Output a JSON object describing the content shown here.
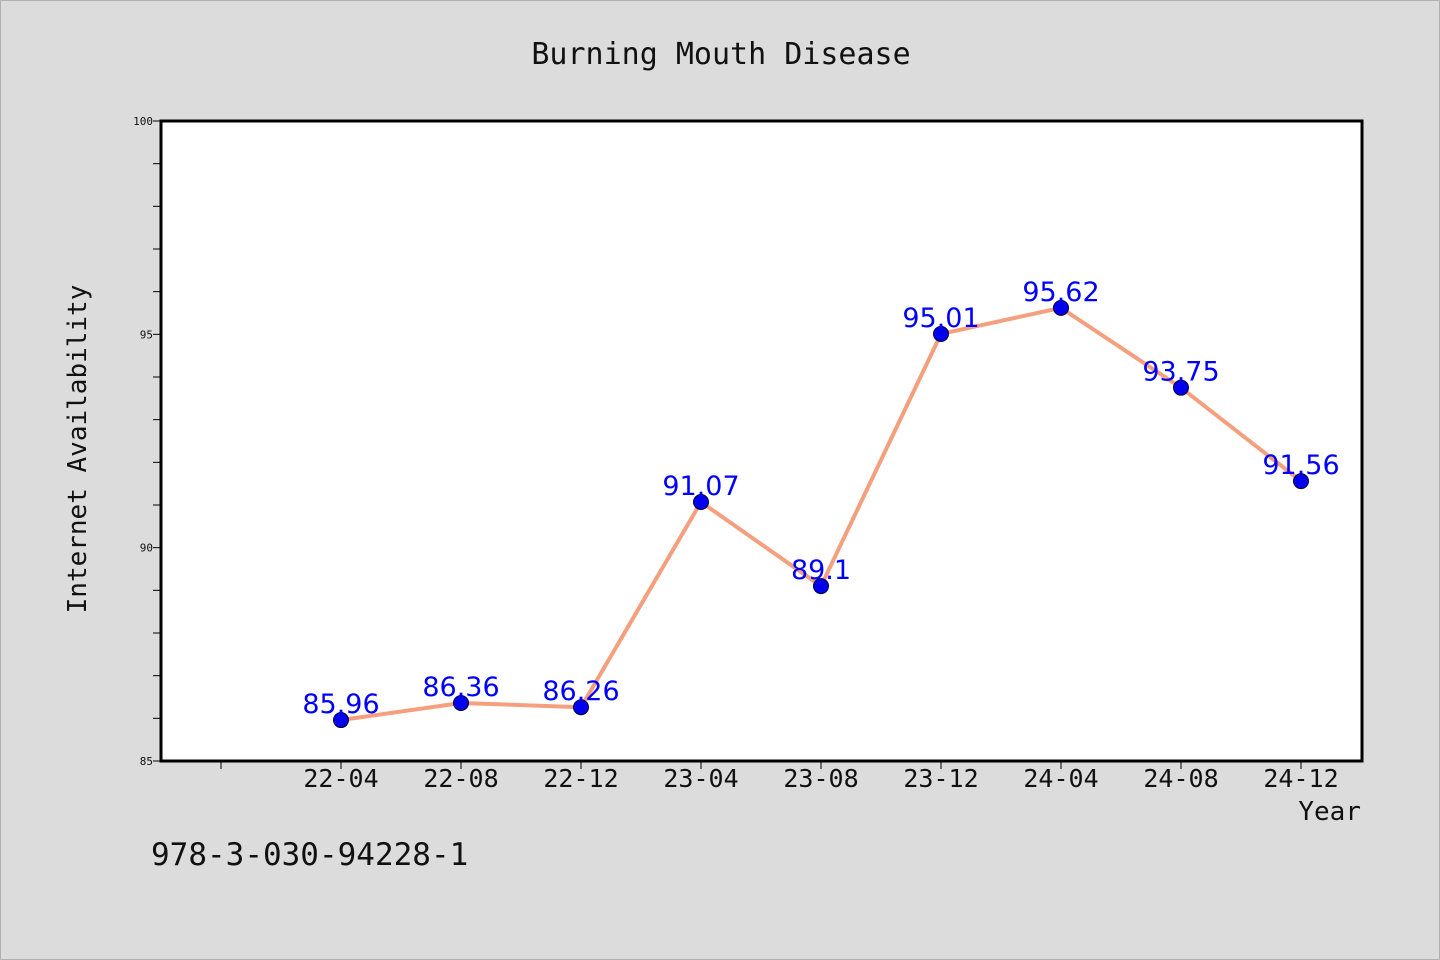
{
  "chart_data": {
    "type": "line",
    "title": "Burning Mouth Disease",
    "xlabel": "Year",
    "ylabel": "Internet Availability",
    "categories": [
      "22-04",
      "22-08",
      "22-12",
      "23-04",
      "23-08",
      "23-12",
      "24-04",
      "24-08",
      "24-12"
    ],
    "series": [
      {
        "values": [
          85.96,
          86.36,
          86.26,
          91.07,
          89.1,
          95.01,
          95.62,
          93.75,
          91.56
        ],
        "labels": [
          "85.96",
          "86.36",
          "86.26",
          "91.07",
          "89.1",
          "95.01",
          "95.62",
          "93.75",
          "91.56"
        ]
      }
    ],
    "ylim": [
      85,
      100
    ],
    "yticks": [
      85,
      90,
      95,
      100
    ],
    "grid": false,
    "legend": "none",
    "colors": {
      "line": "#f4a07e",
      "marker": "#0000ee",
      "data_label": "#0000ff",
      "plot_background": "#ffffff",
      "page_background": "#dcdcdc"
    }
  },
  "footnote": "978-3-030-94228-1"
}
